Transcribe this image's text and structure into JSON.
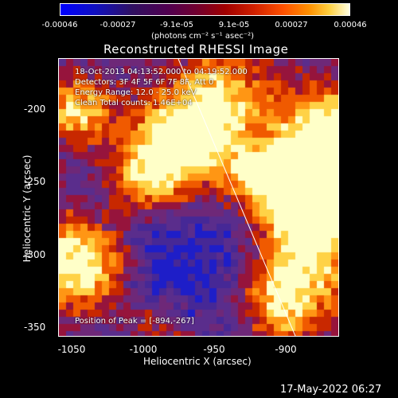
{
  "colorbar": {
    "ticks": [
      "-0.00046",
      "-0.00027",
      "-9.1e-05",
      "9.1e-05",
      "0.00027",
      "0.00046"
    ],
    "units": "(photons cm⁻² s⁻¹ asec⁻²)"
  },
  "title": "Reconstructed RHESSI Image",
  "info": {
    "line1": "18-Oct-2013 04:13:52.000 to 04:19:52.000",
    "line2": "Detectors: 3F 4F 5F 6F 7F 8F, Att 0",
    "line3": "Energy Range: 12.0 - 25.0 keV",
    "line4": "Clean     Total counts: 1.46E+04",
    "peak": "Position of Peak = [-894,-267]"
  },
  "axes": {
    "xlabel": "Heliocentric X (arcsec)",
    "ylabel": "Heliocentric Y (arcsec)",
    "xticks": [
      "-1050",
      "-1000",
      "-950",
      "-900"
    ],
    "yticks": [
      "-200",
      "-250",
      "-300",
      "-350"
    ]
  },
  "footer": {
    "date": "17-May-2022 06:27"
  },
  "colors": {
    "background": "#000000",
    "text": "#ffffff",
    "map_base": "#5a2a90"
  }
}
